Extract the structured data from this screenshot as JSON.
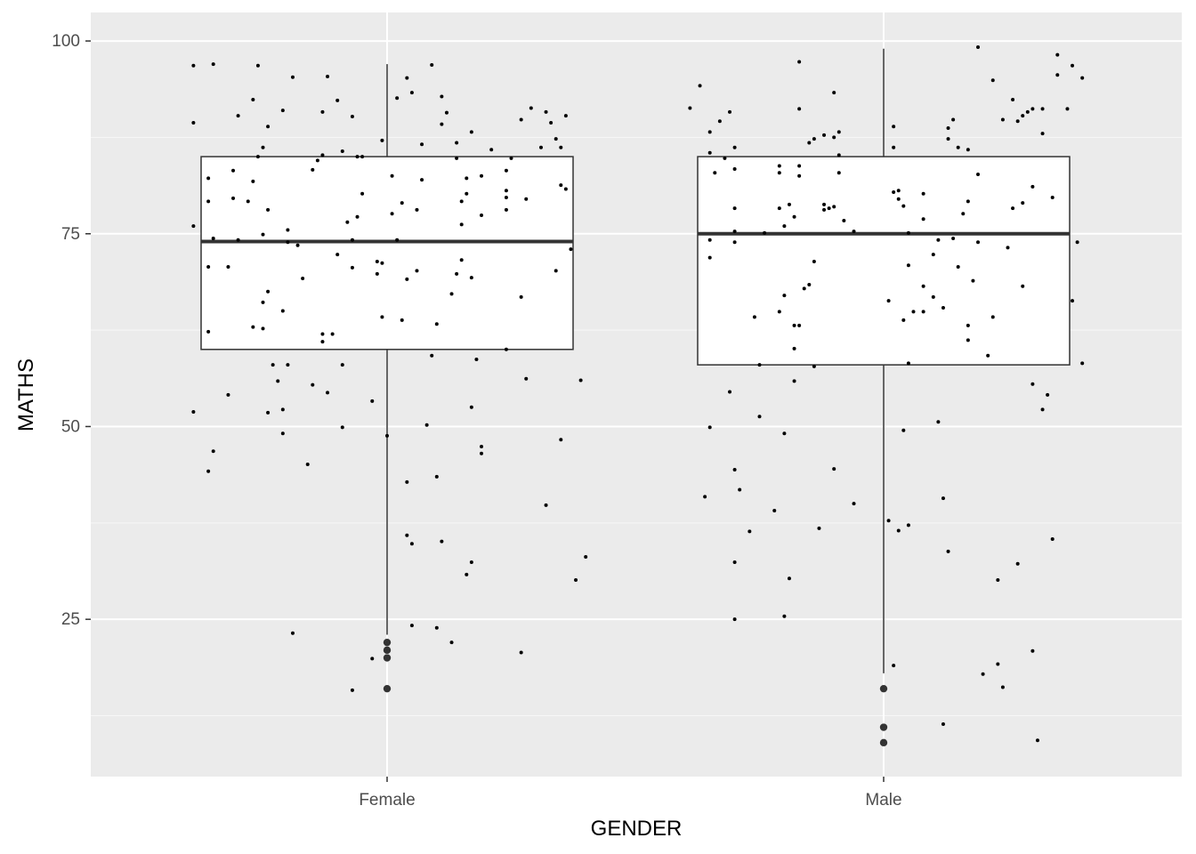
{
  "chart_data": {
    "type": "boxplot",
    "xlabel": "GENDER",
    "ylabel": "MATHS",
    "categories": [
      "Female",
      "Male"
    ],
    "ylim": [
      4.6,
      103.7
    ],
    "yticks": [
      25,
      50,
      75,
      100
    ],
    "yticks_minor": [
      12.5,
      37.5,
      62.5,
      87.5
    ],
    "grid": true,
    "background": "#ebebeb",
    "box_fill": "#ffffff",
    "line_color": "#333333",
    "point_color": "#000000",
    "boxes": [
      {
        "category": "Female",
        "whisker_low": 23,
        "q1": 60,
        "median": 74,
        "q3": 85,
        "whisker_high": 97,
        "outliers": [
          22,
          21,
          20,
          16
        ]
      },
      {
        "category": "Male",
        "whisker_low": 18,
        "q1": 58,
        "median": 75,
        "q3": 85,
        "whisker_high": 99,
        "outliers": [
          16,
          11,
          9
        ]
      }
    ],
    "jitter_points": [
      [
        0.61,
        96.8
      ],
      [
        0.65,
        97
      ],
      [
        0.74,
        96.8
      ],
      [
        0.61,
        89.4
      ],
      [
        0.7,
        90.3
      ],
      [
        0.73,
        92.4
      ],
      [
        0.79,
        91
      ],
      [
        0.81,
        95.3
      ],
      [
        0.76,
        88.9
      ],
      [
        0.88,
        95.4
      ],
      [
        0.9,
        92.3
      ],
      [
        0.87,
        90.8
      ],
      [
        0.93,
        90.2
      ],
      [
        1.04,
        95.2
      ],
      [
        1.05,
        93.3
      ],
      [
        1.09,
        96.9
      ],
      [
        1.02,
        92.6
      ],
      [
        1.11,
        92.8
      ],
      [
        1.12,
        90.7
      ],
      [
        1.11,
        89.2
      ],
      [
        1.07,
        86.6
      ],
      [
        1.14,
        86.8
      ],
      [
        1.17,
        88.2
      ],
      [
        0.99,
        87.1
      ],
      [
        1.21,
        85.9
      ],
      [
        1.27,
        89.8
      ],
      [
        1.29,
        91.3
      ],
      [
        1.32,
        90.8
      ],
      [
        1.36,
        90.3
      ],
      [
        1.33,
        89.4
      ],
      [
        1.34,
        87.3
      ],
      [
        1.35,
        86.2
      ],
      [
        1.31,
        86.2
      ],
      [
        0.75,
        86.2
      ],
      [
        0.74,
        85
      ],
      [
        0.87,
        85.2
      ],
      [
        0.91,
        85.7
      ],
      [
        0.94,
        85
      ],
      [
        0.95,
        85
      ],
      [
        0.64,
        82.2
      ],
      [
        0.64,
        79.2
      ],
      [
        0.69,
        83.2
      ],
      [
        0.73,
        81.8
      ],
      [
        0.61,
        76
      ],
      [
        0.65,
        74.4
      ],
      [
        0.7,
        74.2
      ],
      [
        0.69,
        79.6
      ],
      [
        0.72,
        79.2
      ],
      [
        0.68,
        70.7
      ],
      [
        0.64,
        70.7
      ],
      [
        0.76,
        78.1
      ],
      [
        0.75,
        74.9
      ],
      [
        0.8,
        75.5
      ],
      [
        0.8,
        73.9
      ],
      [
        0.64,
        62.3
      ],
      [
        0.73,
        62.9
      ],
      [
        0.75,
        62.7
      ],
      [
        0.75,
        66.1
      ],
      [
        0.76,
        67.5
      ],
      [
        0.79,
        65
      ],
      [
        0.82,
        73.5
      ],
      [
        0.85,
        83.3
      ],
      [
        0.86,
        84.5
      ],
      [
        0.83,
        69.2
      ],
      [
        0.87,
        62
      ],
      [
        0.87,
        61
      ],
      [
        0.89,
        62
      ],
      [
        0.9,
        72.3
      ],
      [
        0.92,
        76.5
      ],
      [
        0.93,
        74.2
      ],
      [
        0.93,
        70.6
      ],
      [
        0.94,
        77.2
      ],
      [
        0.95,
        80.2
      ],
      [
        0.98,
        71.4
      ],
      [
        0.99,
        71.2
      ],
      [
        0.98,
        69.8
      ],
      [
        1.01,
        77.6
      ],
      [
        1.02,
        74.2
      ],
      [
        1.03,
        79
      ],
      [
        1.01,
        82.5
      ],
      [
        1.07,
        82
      ],
      [
        1.06,
        78.1
      ],
      [
        1.06,
        70.2
      ],
      [
        1.04,
        69.1
      ],
      [
        1.1,
        63.3
      ],
      [
        0.99,
        64.2
      ],
      [
        1.03,
        63.8
      ],
      [
        1.14,
        84.8
      ],
      [
        1.15,
        79.2
      ],
      [
        1.16,
        80.2
      ],
      [
        1.16,
        82.2
      ],
      [
        1.19,
        82.5
      ],
      [
        1.15,
        76.2
      ],
      [
        1.15,
        71.6
      ],
      [
        1.14,
        69.8
      ],
      [
        1.17,
        69.3
      ],
      [
        1.13,
        67.2
      ],
      [
        1.19,
        77.4
      ],
      [
        1.24,
        80.6
      ],
      [
        1.24,
        79.7
      ],
      [
        1.24,
        78.1
      ],
      [
        1.28,
        79.5
      ],
      [
        1.25,
        84.8
      ],
      [
        1.24,
        83.2
      ],
      [
        1.35,
        81.3
      ],
      [
        1.36,
        80.8
      ],
      [
        1.37,
        73
      ],
      [
        1.34,
        70.2
      ],
      [
        1.27,
        66.8
      ],
      [
        0.61,
        51.9
      ],
      [
        0.65,
        46.8
      ],
      [
        0.64,
        44.2
      ],
      [
        0.68,
        54.1
      ],
      [
        0.77,
        58
      ],
      [
        0.78,
        55.9
      ],
      [
        0.79,
        52.2
      ],
      [
        0.76,
        51.8
      ],
      [
        0.79,
        49.1
      ],
      [
        0.8,
        58
      ],
      [
        0.84,
        45.1
      ],
      [
        0.85,
        55.4
      ],
      [
        0.88,
        54.4
      ],
      [
        0.91,
        58
      ],
      [
        0.91,
        49.9
      ],
      [
        0.97,
        53.3
      ],
      [
        1.0,
        48.8
      ],
      [
        1.08,
        50.2
      ],
      [
        1.04,
        42.8
      ],
      [
        1.1,
        43.5
      ],
      [
        1.09,
        59.2
      ],
      [
        1.04,
        35.9
      ],
      [
        1.05,
        34.8
      ],
      [
        1.11,
        35.1
      ],
      [
        1.17,
        32.4
      ],
      [
        1.16,
        30.8
      ],
      [
        1.17,
        52.5
      ],
      [
        1.18,
        58.7
      ],
      [
        1.19,
        47.4
      ],
      [
        1.19,
        46.5
      ],
      [
        1.24,
        60
      ],
      [
        1.28,
        56.2
      ],
      [
        1.32,
        39.8
      ],
      [
        1.35,
        48.3
      ],
      [
        1.39,
        56
      ],
      [
        1.4,
        33.1
      ],
      [
        1.38,
        30.1
      ],
      [
        0.81,
        23.2
      ],
      [
        0.93,
        15.8
      ],
      [
        0.97,
        19.9
      ],
      [
        1.05,
        24.2
      ],
      [
        1.1,
        23.9
      ],
      [
        1.13,
        22
      ],
      [
        1.27,
        20.7
      ],
      [
        1.61,
        91.3
      ],
      [
        1.63,
        94.2
      ],
      [
        1.65,
        88.2
      ],
      [
        1.67,
        89.6
      ],
      [
        1.69,
        90.8
      ],
      [
        1.83,
        97.3
      ],
      [
        1.9,
        93.3
      ],
      [
        1.83,
        91.2
      ],
      [
        1.91,
        88.2
      ],
      [
        1.88,
        87.8
      ],
      [
        1.9,
        87.5
      ],
      [
        1.86,
        87.3
      ],
      [
        1.85,
        86.8
      ],
      [
        2.02,
        88.9
      ],
      [
        2.02,
        86.2
      ],
      [
        2.13,
        88.7
      ],
      [
        2.14,
        89.8
      ],
      [
        2.13,
        87.3
      ],
      [
        2.15,
        86.2
      ],
      [
        2.17,
        85.9
      ],
      [
        2.19,
        99.2
      ],
      [
        2.22,
        94.9
      ],
      [
        2.26,
        92.4
      ],
      [
        2.24,
        89.8
      ],
      [
        2.27,
        89.6
      ],
      [
        2.28,
        90.3
      ],
      [
        2.29,
        90.8
      ],
      [
        2.3,
        91.2
      ],
      [
        2.32,
        91.2
      ],
      [
        2.32,
        88
      ],
      [
        2.35,
        98.2
      ],
      [
        2.38,
        96.8
      ],
      [
        2.35,
        95.6
      ],
      [
        2.4,
        95.2
      ],
      [
        2.37,
        91.2
      ],
      [
        1.7,
        86.2
      ],
      [
        1.65,
        85.5
      ],
      [
        1.66,
        82.9
      ],
      [
        1.7,
        83.4
      ],
      [
        1.68,
        84.8
      ],
      [
        1.65,
        74.2
      ],
      [
        1.65,
        71.9
      ],
      [
        1.7,
        78.3
      ],
      [
        1.7,
        75.3
      ],
      [
        1.7,
        73.9
      ],
      [
        1.76,
        75.1
      ],
      [
        1.79,
        83.8
      ],
      [
        1.79,
        82.9
      ],
      [
        1.79,
        78.3
      ],
      [
        1.8,
        76
      ],
      [
        1.81,
        78.8
      ],
      [
        1.83,
        83.8
      ],
      [
        1.83,
        82.5
      ],
      [
        1.82,
        77.2
      ],
      [
        1.8,
        67
      ],
      [
        1.79,
        64.9
      ],
      [
        1.74,
        64.2
      ],
      [
        1.82,
        63.1
      ],
      [
        1.83,
        63.1
      ],
      [
        1.82,
        60.1
      ],
      [
        1.86,
        71.4
      ],
      [
        1.84,
        67.9
      ],
      [
        1.85,
        68.4
      ],
      [
        1.88,
        78.8
      ],
      [
        1.88,
        78.1
      ],
      [
        1.89,
        78.3
      ],
      [
        1.9,
        78.5
      ],
      [
        1.91,
        85.2
      ],
      [
        1.91,
        82.9
      ],
      [
        1.92,
        76.7
      ],
      [
        1.94,
        75.3
      ],
      [
        2.01,
        66.3
      ],
      [
        2.02,
        80.4
      ],
      [
        2.03,
        80.6
      ],
      [
        2.03,
        79.5
      ],
      [
        2.04,
        78.6
      ],
      [
        2.05,
        70.9
      ],
      [
        2.05,
        75.1
      ],
      [
        2.06,
        64.9
      ],
      [
        2.04,
        63.8
      ],
      [
        2.08,
        80.2
      ],
      [
        2.08,
        68.2
      ],
      [
        2.08,
        64.9
      ],
      [
        2.08,
        76.9
      ],
      [
        2.1,
        66.8
      ],
      [
        2.1,
        72.3
      ],
      [
        2.11,
        74.2
      ],
      [
        2.12,
        65.4
      ],
      [
        2.14,
        74.4
      ],
      [
        2.16,
        77.6
      ],
      [
        2.15,
        70.7
      ],
      [
        2.17,
        79.2
      ],
      [
        2.18,
        68.9
      ],
      [
        2.19,
        82.7
      ],
      [
        2.19,
        73.9
      ],
      [
        2.17,
        63.1
      ],
      [
        2.17,
        61.2
      ],
      [
        2.22,
        64.2
      ],
      [
        2.25,
        73.2
      ],
      [
        2.26,
        78.3
      ],
      [
        2.28,
        79
      ],
      [
        2.3,
        81.1
      ],
      [
        2.34,
        79.7
      ],
      [
        2.28,
        68.2
      ],
      [
        2.21,
        59.2
      ],
      [
        2.38,
        66.3
      ],
      [
        2.39,
        73.9
      ],
      [
        2.4,
        58.2
      ],
      [
        1.64,
        40.9
      ],
      [
        1.65,
        49.9
      ],
      [
        1.69,
        54.5
      ],
      [
        1.7,
        44.4
      ],
      [
        1.71,
        41.8
      ],
      [
        1.7,
        32.4
      ],
      [
        1.73,
        36.4
      ],
      [
        1.7,
        25
      ],
      [
        1.75,
        51.3
      ],
      [
        1.75,
        58
      ],
      [
        1.78,
        39.1
      ],
      [
        1.8,
        49.1
      ],
      [
        1.81,
        30.3
      ],
      [
        1.8,
        25.4
      ],
      [
        1.82,
        55.9
      ],
      [
        1.87,
        36.8
      ],
      [
        1.86,
        57.8
      ],
      [
        1.9,
        44.5
      ],
      [
        1.94,
        40
      ],
      [
        2.01,
        37.8
      ],
      [
        2.02,
        19
      ],
      [
        2.03,
        36.5
      ],
      [
        2.05,
        37.2
      ],
      [
        2.04,
        49.5
      ],
      [
        2.05,
        58.2
      ],
      [
        2.11,
        50.6
      ],
      [
        2.12,
        40.7
      ],
      [
        2.13,
        33.8
      ],
      [
        2.12,
        11.4
      ],
      [
        2.2,
        17.9
      ],
      [
        2.23,
        19.2
      ],
      [
        2.23,
        30.1
      ],
      [
        2.24,
        16.2
      ],
      [
        2.27,
        32.2
      ],
      [
        2.3,
        20.9
      ],
      [
        2.3,
        55.5
      ],
      [
        2.32,
        52.2
      ],
      [
        2.33,
        54.1
      ],
      [
        2.34,
        35.4
      ],
      [
        2.31,
        9.3
      ]
    ]
  }
}
